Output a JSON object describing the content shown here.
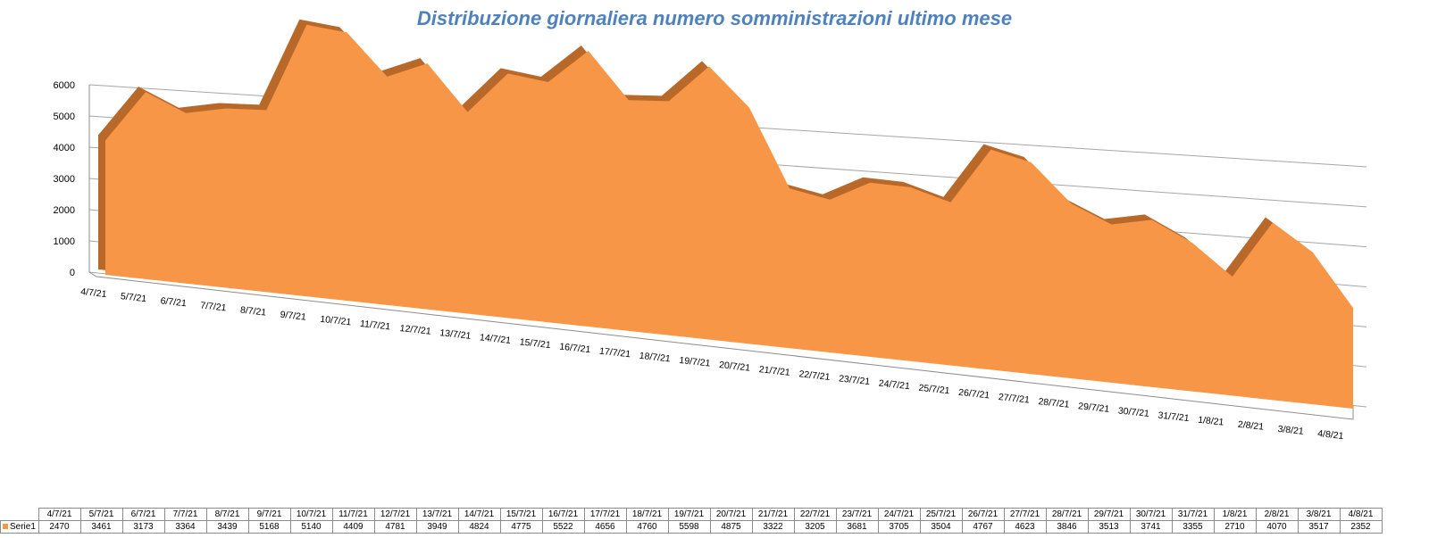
{
  "chart_data": {
    "type": "area",
    "title": "Distribuzione giornaliera numero somministrazioni ultimo mese",
    "categories": [
      "4/7/21",
      "5/7/21",
      "6/7/21",
      "7/7/21",
      "8/7/21",
      "9/7/21",
      "10/7/21",
      "11/7/21",
      "12/7/21",
      "13/7/21",
      "14/7/21",
      "15/7/21",
      "16/7/21",
      "17/7/21",
      "18/7/21",
      "19/7/21",
      "20/7/21",
      "21/7/21",
      "22/7/21",
      "23/7/21",
      "24/7/21",
      "25/7/21",
      "26/7/21",
      "27/7/21",
      "28/7/21",
      "29/7/21",
      "30/7/21",
      "31/7/21",
      "1/8/21",
      "2/8/21",
      "3/8/21",
      "4/8/21"
    ],
    "series": [
      {
        "name": "Serie1",
        "values": [
          2470,
          3461,
          3173,
          3364,
          3439,
          5168,
          5140,
          4409,
          4781,
          3949,
          4824,
          4775,
          5522,
          4656,
          4760,
          5598,
          4875,
          3322,
          3205,
          3681,
          3705,
          3504,
          4767,
          4623,
          3846,
          3513,
          3741,
          3355,
          2710,
          4070,
          3517,
          2352
        ],
        "color": "#f79646"
      }
    ],
    "y_ticks": [
      0,
      1000,
      2000,
      3000,
      4000,
      5000,
      6000
    ],
    "ylim": [
      0,
      6000
    ],
    "grid": true,
    "legend": "data-table"
  }
}
